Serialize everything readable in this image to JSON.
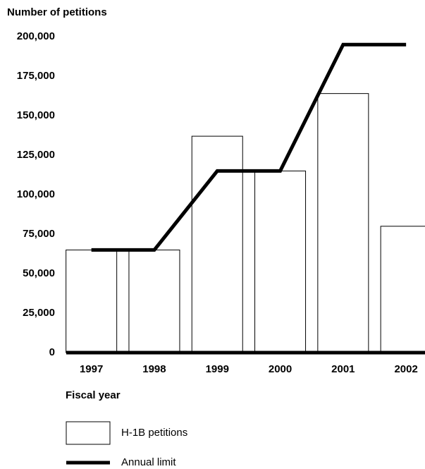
{
  "chart_data": {
    "type": "bar_line",
    "y_axis_label": "Number of petitions",
    "x_axis_label": "Fiscal year",
    "categories": [
      "1997",
      "1998",
      "1999",
      "2000",
      "2001",
      "2002"
    ],
    "series": [
      {
        "name": "H-1B petitions",
        "type": "bar",
        "color": "#ffffff",
        "values": [
          65000,
          65000,
          137000,
          115000,
          164000,
          80000
        ]
      },
      {
        "name": "Annual limit",
        "type": "line",
        "color": "#000000",
        "values": [
          65000,
          65000,
          115000,
          115000,
          195000,
          195000
        ]
      }
    ],
    "ylim": [
      0,
      200000
    ],
    "yticks": [
      0,
      {
        "value": 25000,
        "label": "25,000"
      },
      {
        "value": 50000,
        "label": "50,000"
      },
      {
        "value": 75000,
        "label": "75,000"
      },
      {
        "value": 100000,
        "label": "100,000"
      },
      {
        "value": 125000,
        "label": "125,000"
      },
      {
        "value": 150000,
        "label": "150,000"
      },
      {
        "value": 175000,
        "label": "175,000"
      },
      {
        "value": 200000,
        "label": "200,000"
      }
    ],
    "grid": false
  }
}
